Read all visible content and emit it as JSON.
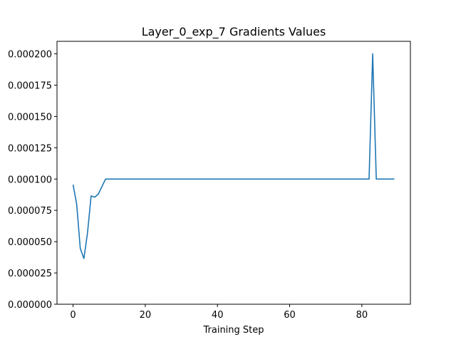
{
  "chart_data": {
    "type": "line",
    "title": "Layer_0_exp_7 Gradients Values",
    "xlabel": "Training Step",
    "ylabel": "",
    "xlim": [
      -4.45,
      93.45
    ],
    "ylim": [
      0,
      0.00021
    ],
    "x_ticks": [
      0,
      20,
      40,
      60,
      80
    ],
    "x_tick_labels": [
      "0",
      "20",
      "40",
      "60",
      "80"
    ],
    "y_ticks": [
      0,
      2.5e-05,
      5e-05,
      7.5e-05,
      0.0001,
      0.000125,
      0.00015,
      0.000175,
      0.0002
    ],
    "y_tick_labels": [
      "0.000000",
      "0.000025",
      "0.000050",
      "0.000075",
      "0.000100",
      "0.000125",
      "0.000150",
      "0.000175",
      "0.000200"
    ],
    "grid": false,
    "line_color": "#1f77b4",
    "series": [
      {
        "x": [
          0,
          1,
          2,
          3,
          4,
          5,
          6,
          7,
          8,
          9,
          10,
          11,
          12,
          13,
          14,
          15,
          16,
          17,
          18,
          19,
          20,
          21,
          22,
          23,
          24,
          25,
          26,
          27,
          28,
          29,
          30,
          31,
          32,
          33,
          34,
          35,
          36,
          37,
          38,
          39,
          40,
          41,
          42,
          43,
          44,
          45,
          46,
          47,
          48,
          49,
          50,
          51,
          52,
          53,
          54,
          55,
          56,
          57,
          58,
          59,
          60,
          61,
          62,
          63,
          64,
          65,
          66,
          67,
          68,
          69,
          70,
          71,
          72,
          73,
          74,
          75,
          76,
          77,
          78,
          79,
          80,
          81,
          82,
          83,
          84,
          85,
          86,
          87,
          88,
          89
        ],
        "values": [
          9.55e-05,
          8e-05,
          4.45e-05,
          3.65e-05,
          5.7e-05,
          8.65e-05,
          8.55e-05,
          8.8e-05,
          9.4e-05,
          0.0001,
          0.0001,
          0.0001,
          0.0001,
          0.0001,
          0.0001,
          0.0001,
          0.0001,
          0.0001,
          0.0001,
          0.0001,
          0.0001,
          0.0001,
          0.0001,
          0.0001,
          0.0001,
          0.0001,
          0.0001,
          0.0001,
          0.0001,
          0.0001,
          0.0001,
          0.0001,
          0.0001,
          0.0001,
          0.0001,
          0.0001,
          0.0001,
          0.0001,
          0.0001,
          0.0001,
          0.0001,
          0.0001,
          0.0001,
          0.0001,
          0.0001,
          0.0001,
          0.0001,
          0.0001,
          0.0001,
          0.0001,
          0.0001,
          0.0001,
          0.0001,
          0.0001,
          0.0001,
          0.0001,
          0.0001,
          0.0001,
          0.0001,
          0.0001,
          0.0001,
          0.0001,
          0.0001,
          0.0001,
          0.0001,
          0.0001,
          0.0001,
          0.0001,
          0.0001,
          0.0001,
          0.0001,
          0.0001,
          0.0001,
          0.0001,
          0.0001,
          0.0001,
          0.0001,
          0.0001,
          0.0001,
          0.0001,
          0.0001,
          0.0001,
          0.0001,
          0.0002,
          0.0001,
          0.0001,
          0.0001,
          0.0001,
          0.0001,
          0.0001
        ]
      }
    ]
  }
}
